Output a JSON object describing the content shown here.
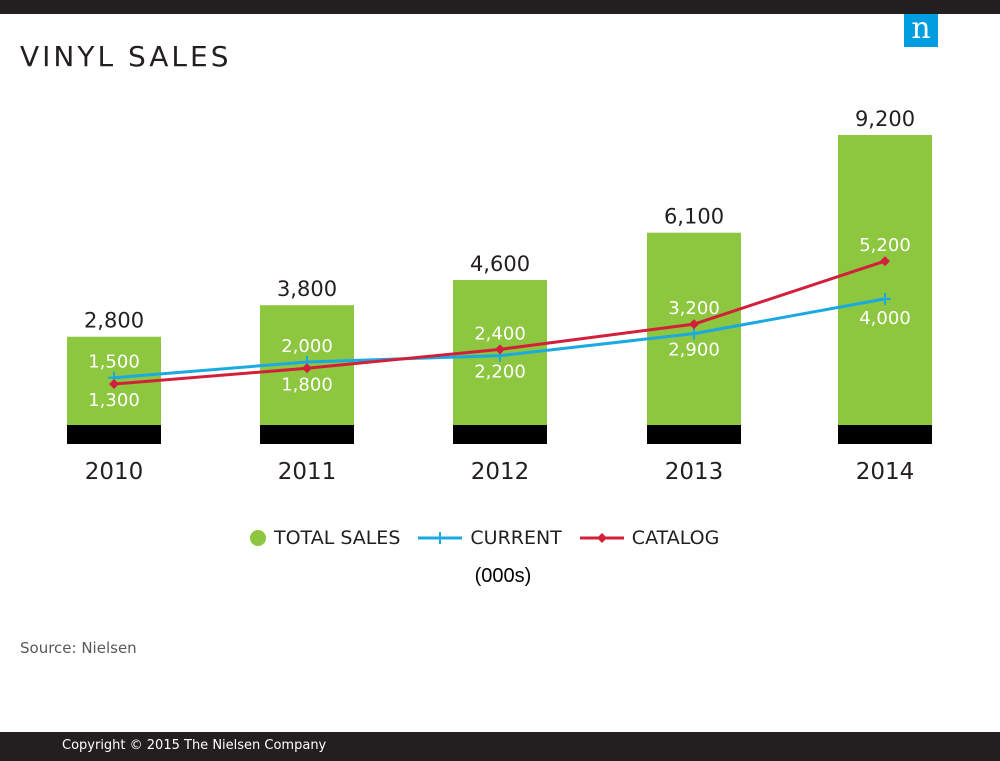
{
  "logo_letter": "n",
  "source": "Source: Nielsen",
  "copyright": "Copyright © 2015 The Nielsen Company",
  "colors": {
    "total": "#8dc63f",
    "current": "#1ba9e1",
    "catalog": "#d2203a",
    "base": "#000000",
    "brand": "#009de0"
  },
  "chart_data": {
    "type": "bar",
    "title": "VINYL SALES",
    "units": "(000s)",
    "categories": [
      "2010",
      "2011",
      "2012",
      "2013",
      "2014"
    ],
    "grid": false,
    "legend_position": "bottom-center",
    "series": [
      {
        "name": "TOTAL SALES",
        "type": "bar",
        "values": [
          2800,
          3800,
          4600,
          6100,
          9200
        ],
        "labels": [
          "2,800",
          "3,800",
          "4,600",
          "6,100",
          "9,200"
        ]
      },
      {
        "name": "CURRENT",
        "type": "line",
        "marker": "cross",
        "values": [
          1500,
          2000,
          2200,
          2900,
          4000
        ],
        "labels": [
          "1,500",
          "2,000",
          "2,200",
          "2,900",
          "4,000"
        ]
      },
      {
        "name": "CATALOG",
        "type": "line",
        "marker": "diamond",
        "values": [
          1300,
          1800,
          2400,
          3200,
          5200
        ],
        "labels": [
          "1,300",
          "1,800",
          "2,400",
          "3,200",
          "5,200"
        ]
      }
    ]
  }
}
